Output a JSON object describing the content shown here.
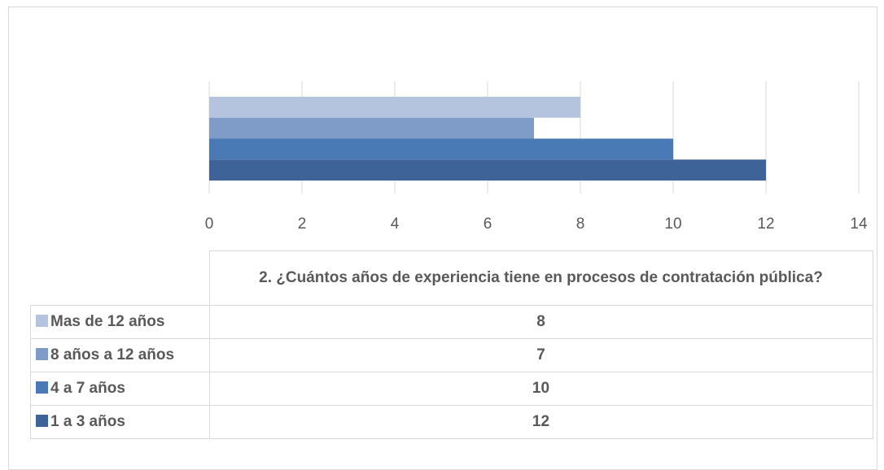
{
  "chart_data": {
    "type": "bar",
    "orientation": "horizontal",
    "categories": [
      "2. ¿Cuántos años de experiencia tiene en procesos de contratación pública?"
    ],
    "series": [
      {
        "name": "Mas de 12 años",
        "color": "#b4c4de",
        "values": [
          8
        ]
      },
      {
        "name": "8 años a 12 años",
        "color": "#7f9cc8",
        "values": [
          7
        ]
      },
      {
        "name": "4 a 7 años",
        "color": "#4a7ab5",
        "values": [
          10
        ]
      },
      {
        "name": "1 a 3 años",
        "color": "#3d6399",
        "values": [
          12
        ]
      }
    ],
    "xlim": [
      0,
      14
    ],
    "xticks": [
      0,
      2,
      4,
      6,
      8,
      10,
      12,
      14
    ],
    "grid": true,
    "data_table": true
  }
}
